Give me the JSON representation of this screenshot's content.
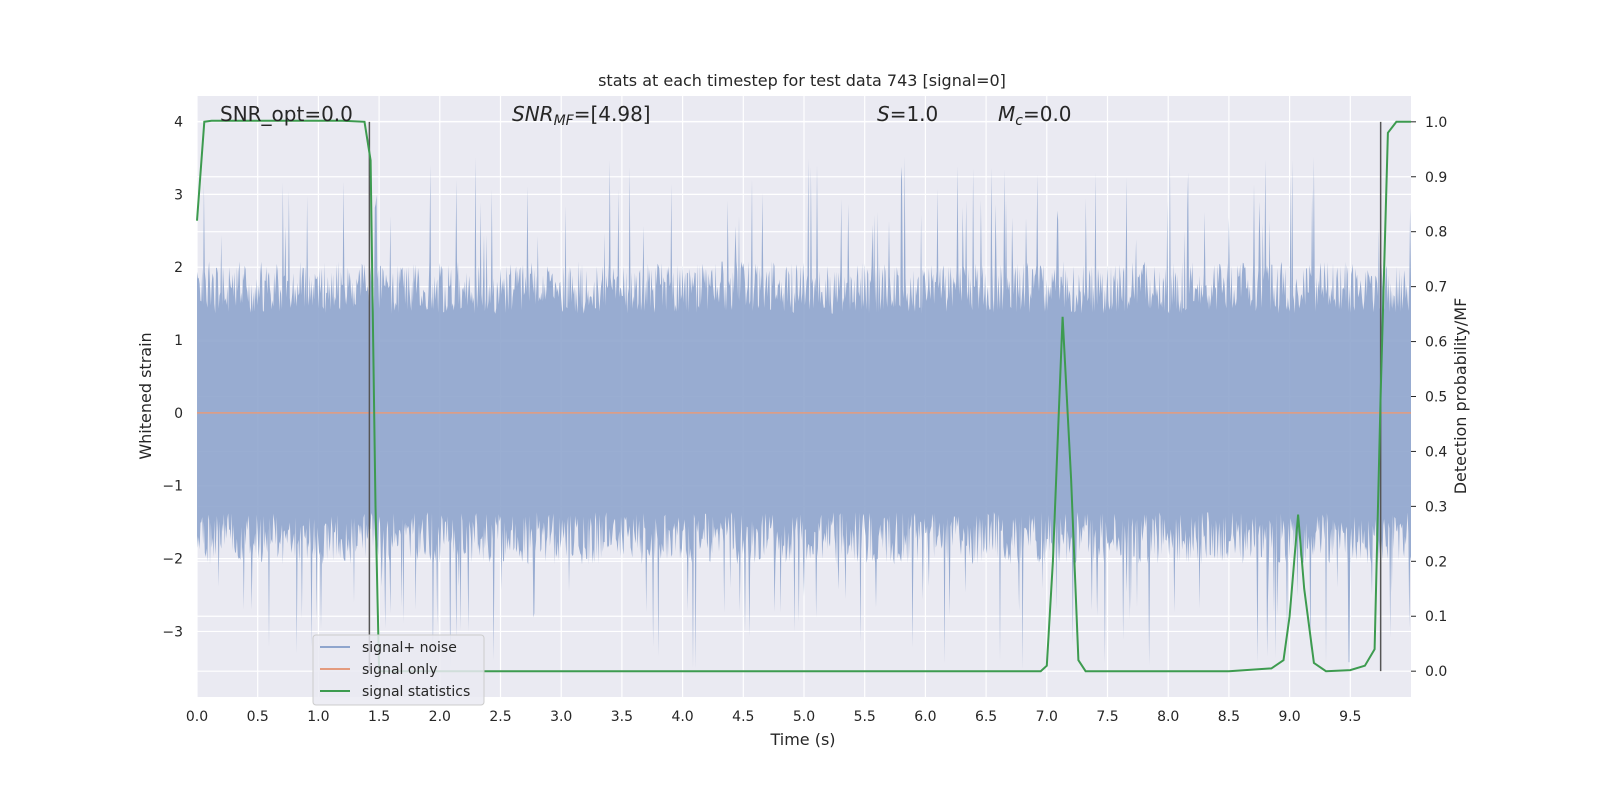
{
  "chart_data": {
    "type": "line",
    "title": "stats at each timestep for test data 743 [signal=0]",
    "xlabel": "Time (s)",
    "ylabel": "Whitened strain",
    "ylabel_right": "Detection probability/MF",
    "xlim": [
      0,
      10
    ],
    "ylim": [
      -3.9,
      4.35
    ],
    "ylim_right": [
      -0.047,
      1.047
    ],
    "grid": true,
    "legend_position": "lower-left",
    "x_ticks": [
      "0.0",
      "0.5",
      "1.0",
      "1.5",
      "2.0",
      "2.5",
      "3.0",
      "3.5",
      "4.0",
      "4.5",
      "5.0",
      "5.5",
      "6.0",
      "6.5",
      "7.0",
      "7.5",
      "8.0",
      "8.5",
      "9.0",
      "9.5"
    ],
    "y_ticks": [
      "4",
      "3",
      "2",
      "1",
      "0",
      "−1",
      "−2",
      "−3"
    ],
    "y_right_ticks": [
      "1.0",
      "0.9",
      "0.8",
      "0.7",
      "0.6",
      "0.5",
      "0.4",
      "0.3",
      "0.2",
      "0.1",
      "0.0"
    ],
    "annotations": {
      "snr_opt": "SNR_opt=0.0",
      "snr_mf_italic": "SNR",
      "snr_mf_sub": "MF",
      "snr_mf_value": "=[4.98]",
      "s_italic": "S",
      "s_value": "=1.0",
      "mc_italic": "M",
      "mc_sub": "c",
      "mc_value": "=0.0"
    },
    "vertical_lines_x": [
      1.42,
      9.75
    ],
    "series": [
      {
        "name": "signal+ noise",
        "color": "#8fa5cd",
        "typical_envelope_abs": 1.6,
        "peak_max": 3.55,
        "peak_min": -3.55
      },
      {
        "name": "signal only",
        "color": "#e49b7e",
        "constant_value": 0.0
      },
      {
        "name": "signal statistics",
        "color": "#3d9b4f",
        "axis": "right",
        "x": [
          0.0,
          0.06,
          0.12,
          0.2,
          0.4,
          0.6,
          0.8,
          1.0,
          1.2,
          1.38,
          1.43,
          1.47,
          1.5,
          1.6,
          2.0,
          3.0,
          4.0,
          5.0,
          6.0,
          6.8,
          6.95,
          7.0,
          7.05,
          7.13,
          7.2,
          7.26,
          7.32,
          7.4,
          7.8,
          8.5,
          8.85,
          8.95,
          9.0,
          9.07,
          9.12,
          9.2,
          9.3,
          9.5,
          9.62,
          9.7,
          9.75,
          9.81,
          9.88,
          9.95,
          10.0
        ],
        "y": [
          0.82,
          1.0,
          1.002,
          1.002,
          1.002,
          1.002,
          1.002,
          1.002,
          1.002,
          1.0,
          0.93,
          0.3,
          0.0,
          0.0,
          0.0,
          0.0,
          0.0,
          0.0,
          0.0,
          0.0,
          0.0,
          0.01,
          0.2,
          0.645,
          0.35,
          0.02,
          0.0,
          0.0,
          0.0,
          0.0,
          0.005,
          0.02,
          0.1,
          0.285,
          0.15,
          0.015,
          0.0,
          0.002,
          0.01,
          0.04,
          0.5,
          0.98,
          1.0,
          1.0,
          1.0
        ]
      }
    ]
  }
}
